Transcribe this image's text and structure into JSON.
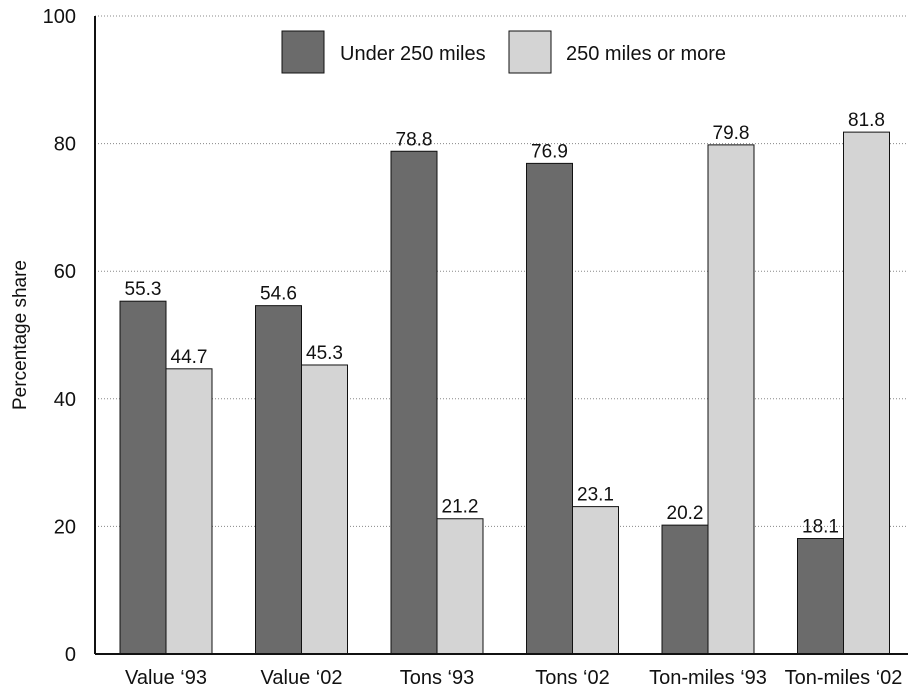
{
  "chart_data": {
    "type": "bar",
    "title": "",
    "xlabel": "",
    "ylabel": "Percentage share",
    "ylim": [
      0,
      100
    ],
    "yticks": [
      0,
      20,
      40,
      60,
      80,
      100
    ],
    "grid": "horizontal dotted",
    "legend_position": "top",
    "categories": [
      "Value ‘93",
      "Value ‘02",
      "Tons ‘93",
      "Tons ‘02",
      "Ton-miles ‘93",
      "Ton-miles ‘02"
    ],
    "series": [
      {
        "name": "Under 250 miles",
        "color": "#6b6b6b",
        "values": [
          55.3,
          54.6,
          78.8,
          76.9,
          20.2,
          18.1
        ]
      },
      {
        "name": "250 miles or more",
        "color": "#d4d4d4",
        "values": [
          44.7,
          45.3,
          21.2,
          23.1,
          79.8,
          81.8
        ]
      }
    ]
  }
}
